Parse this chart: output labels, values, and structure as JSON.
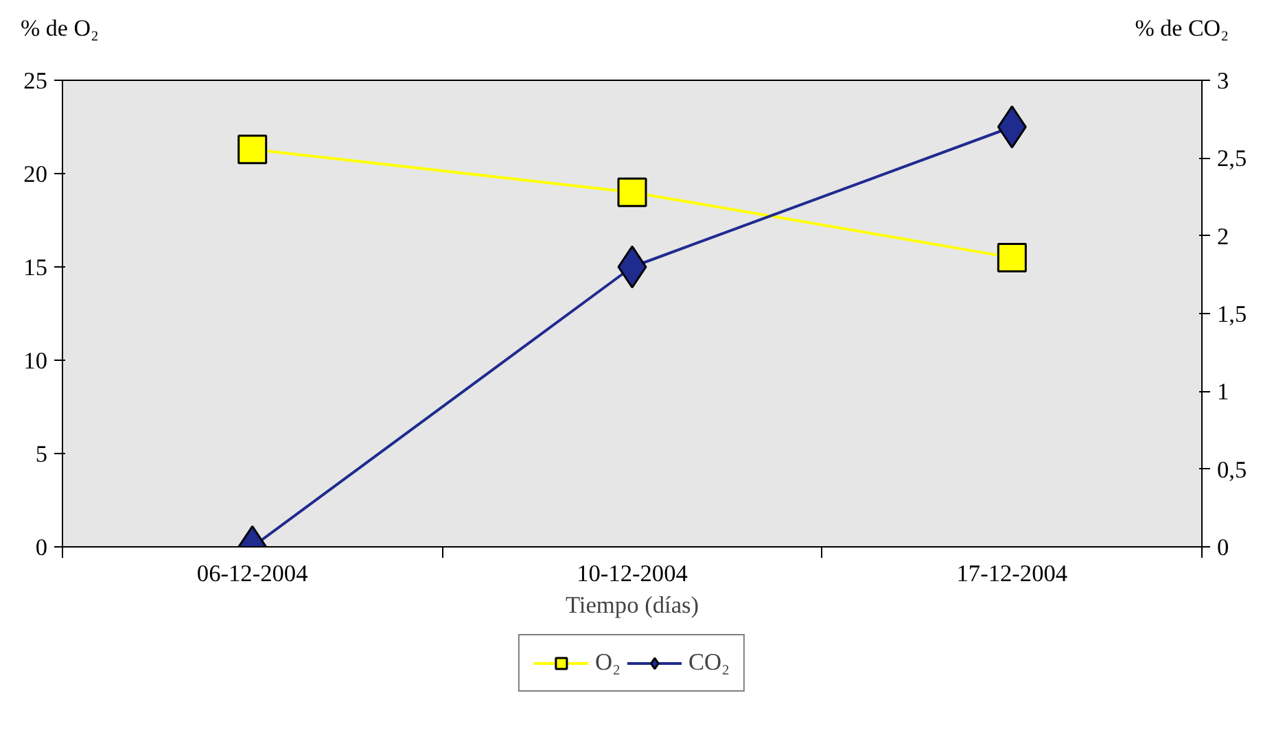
{
  "chart_data": {
    "type": "line",
    "categories": [
      "06-12-2004",
      "10-12-2004",
      "17-12-2004"
    ],
    "series": [
      {
        "name": "O₂",
        "color": "#ffff00",
        "values": [
          21.3,
          19.0,
          15.5
        ],
        "marker": "square"
      },
      {
        "name": "CO₂",
        "color": "#1f2b8f",
        "values": [
          0,
          1.8,
          2.7
        ],
        "marker": "diamond",
        "axis": "y2"
      }
    ],
    "ylabel": "% de O₂",
    "y2label": "% de CO₂",
    "xlabel": "Tiempo (días)",
    "ylim": [
      0,
      25
    ],
    "yticks": [
      0,
      5,
      10,
      15,
      20,
      25
    ],
    "y2lim": [
      0,
      3
    ],
    "y2ticks": [
      0,
      {
        "value": 0.5,
        "label": "0,5"
      },
      1,
      {
        "value": 1.5,
        "label": "1,5"
      },
      2,
      {
        "value": 2.5,
        "label": "2,5"
      },
      3
    ],
    "grid": false,
    "legend": "bottom",
    "line_style": "solid"
  }
}
